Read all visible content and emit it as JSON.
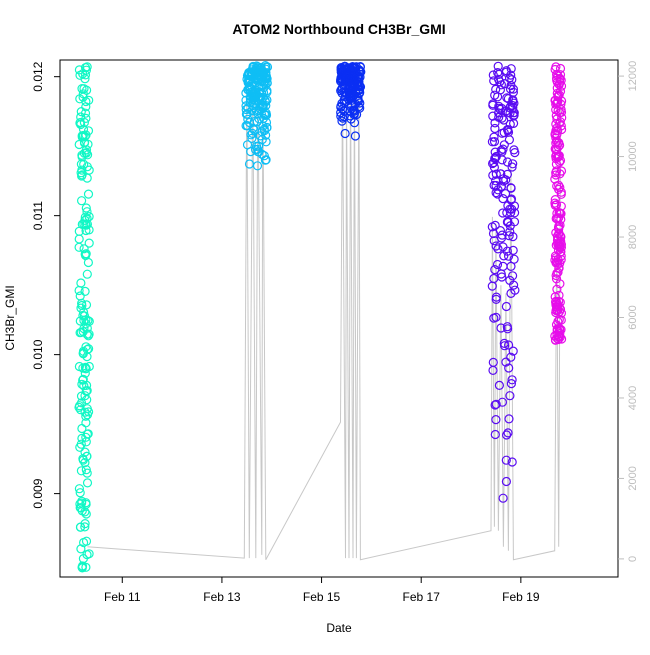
{
  "chart_data": {
    "type": "scatter",
    "title": "ATOM2 Northbound CH3Br_GMI",
    "xlabel": "Date",
    "ylabel": "CH3Br_GMI",
    "x_axis": {
      "unit": "days",
      "range_days": [
        9.75,
        20.95
      ],
      "ticks": [
        {
          "value": 11,
          "label": "Feb 11"
        },
        {
          "value": 13,
          "label": "Feb 13"
        },
        {
          "value": 15,
          "label": "Feb 15"
        },
        {
          "value": 17,
          "label": "Feb 17"
        },
        {
          "value": 19,
          "label": "Feb 19"
        }
      ]
    },
    "y_left": {
      "range": [
        0.0084,
        0.01212
      ],
      "ticks": [
        {
          "value": 0.009,
          "label": "0.009"
        },
        {
          "value": 0.01,
          "label": "0.010"
        },
        {
          "value": 0.011,
          "label": "0.011"
        },
        {
          "value": 0.012,
          "label": "0.012"
        }
      ]
    },
    "y_right": {
      "description": "altitude trace (grey line)",
      "range": [
        -450,
        12400
      ],
      "color": "#c8c8c8",
      "ticks": [
        {
          "value": 0,
          "label": "0"
        },
        {
          "value": 2000,
          "label": "2000"
        },
        {
          "value": 4000,
          "label": "4000"
        },
        {
          "value": 6000,
          "label": "6000"
        },
        {
          "value": 8000,
          "label": "8000"
        },
        {
          "value": 10000,
          "label": "10000"
        },
        {
          "value": 12000,
          "label": "12000"
        }
      ]
    },
    "series": [
      {
        "color": "#11f7c5",
        "x_range": [
          10.13,
          10.34
        ],
        "y_range": [
          0.00845,
          0.01208
        ]
      },
      {
        "color": "#0fbef5",
        "x_range": [
          13.48,
          13.92
        ],
        "y_range": [
          0.01122,
          0.01208
        ]
      },
      {
        "color": "#0b2ff3",
        "x_range": [
          15.38,
          15.79
        ],
        "y_range": [
          0.01153,
          0.01208
        ]
      },
      {
        "color": "#5a0cf2",
        "x_range": [
          18.42,
          18.88
        ],
        "y_range": [
          0.0086,
          0.01208
        ]
      },
      {
        "color": "#e60eea",
        "x_range": [
          19.68,
          19.82
        ],
        "y_range": [
          0.0101,
          0.01208
        ]
      }
    ],
    "altitude_trace": [
      [
        10.3,
        300
      ],
      [
        13.45,
        20
      ],
      [
        13.5,
        12000
      ],
      [
        13.55,
        20
      ],
      [
        13.62,
        12000
      ],
      [
        13.68,
        20
      ],
      [
        13.72,
        12000
      ],
      [
        13.8,
        100
      ],
      [
        13.82,
        12000
      ],
      [
        13.88,
        -20
      ],
      [
        15.38,
        3400
      ],
      [
        15.42,
        11800
      ],
      [
        15.48,
        20
      ],
      [
        15.5,
        11500
      ],
      [
        15.55,
        20
      ],
      [
        15.58,
        12000
      ],
      [
        15.63,
        20
      ],
      [
        15.66,
        12000
      ],
      [
        15.7,
        20
      ],
      [
        15.75,
        12000
      ],
      [
        15.78,
        -20
      ],
      [
        18.4,
        700
      ],
      [
        18.43,
        8500
      ],
      [
        18.47,
        800
      ],
      [
        18.5,
        8200
      ],
      [
        18.55,
        700
      ],
      [
        18.6,
        6800
      ],
      [
        18.65,
        300
      ],
      [
        18.7,
        6600
      ],
      [
        18.75,
        200
      ],
      [
        18.8,
        9800
      ],
      [
        18.85,
        -20
      ],
      [
        19.68,
        200
      ],
      [
        19.72,
        8000
      ],
      [
        19.76,
        300
      ],
      [
        19.8,
        12000
      ]
    ],
    "grid": false,
    "legend": "none"
  }
}
